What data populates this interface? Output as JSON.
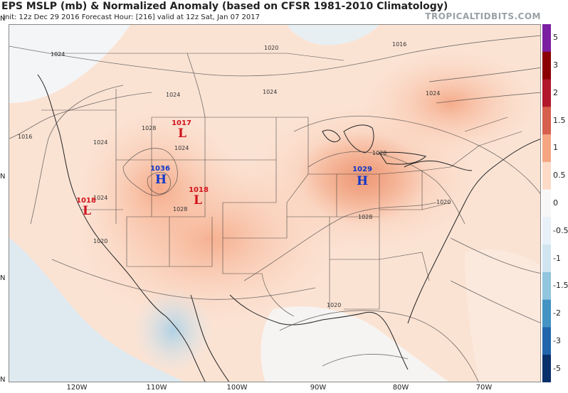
{
  "header": {
    "title": "EPS MSLP (mb) & Normalized Anomaly (based on CFSR 1981-2010 Climatology)",
    "subtitle": "Init: 12z Dec 29 2016   Forecast Hour: [216]   valid at 12z Sat, Jan 07 2017",
    "brand": "TROPICALTIDBITS.COM"
  },
  "longitude_labels": [
    "120W",
    "110W",
    "100W",
    "90W",
    "80W",
    "70W"
  ],
  "latitude_labels": [
    "N",
    "N",
    "N",
    "N"
  ],
  "colorbar": {
    "ticks": [
      "5",
      "3",
      "2",
      "1.5",
      "1",
      "0.5",
      "0",
      "-0.5",
      "-1",
      "-1.5",
      "-2",
      "-3",
      "-5"
    ],
    "colors": [
      "#7b1fa2",
      "#8b0000",
      "#b2182b",
      "#d6604d",
      "#f4a582",
      "#fddbc7",
      "#f7f7f7",
      "#e8f1f8",
      "#d1e5f0",
      "#92c5de",
      "#4393c3",
      "#2166ac",
      "#08306b"
    ]
  },
  "pressure_centers": [
    {
      "type": "L",
      "value": "1017",
      "color": "#d0121b"
    },
    {
      "type": "H",
      "value": "1036",
      "color": "#1237c8"
    },
    {
      "type": "L",
      "value": "1018",
      "color": "#d0121b"
    },
    {
      "type": "L",
      "value": "1018",
      "color": "#d0121b"
    },
    {
      "type": "H",
      "value": "1029",
      "color": "#1237c8"
    }
  ],
  "isobar_labels": [
    "1024",
    "1020",
    "1016",
    "1024",
    "1024",
    "1024",
    "1028",
    "1024",
    "1024",
    "1016",
    "1024",
    "1028",
    "1028",
    "1020",
    "1020",
    "1020",
    "1028"
  ]
}
